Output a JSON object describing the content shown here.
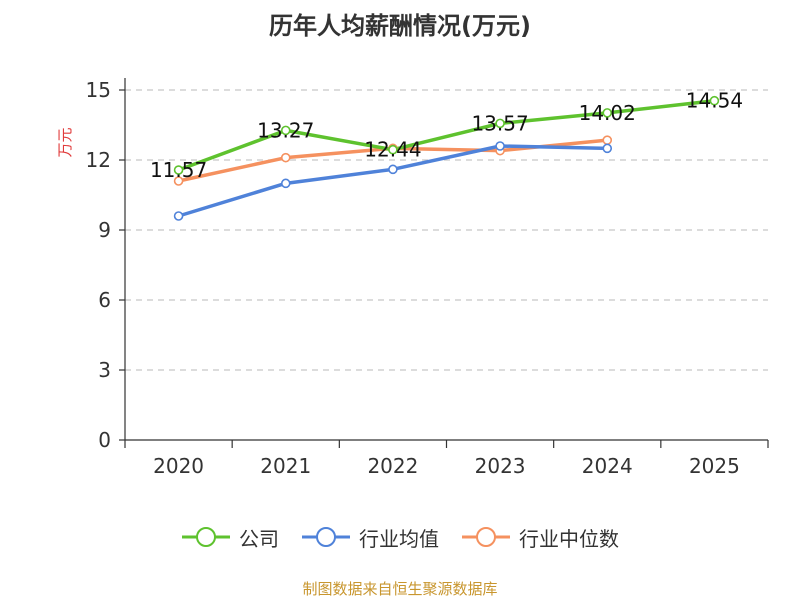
{
  "chart_data": {
    "type": "line",
    "title": "历年人均薪酬情况(万元)",
    "ylabel": "万元",
    "ylim": [
      0,
      15
    ],
    "yticks": [
      0,
      3,
      6,
      9,
      12,
      15
    ],
    "grid": true,
    "legend_position": "bottom",
    "categories": [
      "2020",
      "2021",
      "2022",
      "2023",
      "2024",
      "2025"
    ],
    "series": [
      {
        "name": "公司",
        "color": "#5ec22e",
        "values": [
          11.57,
          13.27,
          12.44,
          13.57,
          14.02,
          14.54
        ],
        "labels": [
          "11.57",
          "13.27",
          "12.44",
          "13.57",
          "14.02",
          "14.54"
        ]
      },
      {
        "name": "行业均值",
        "color": "#4f82d9",
        "values": [
          9.6,
          11.0,
          11.6,
          12.6,
          12.5,
          null
        ]
      },
      {
        "name": "行业中位数",
        "color": "#f5915f",
        "values": [
          11.1,
          12.1,
          12.5,
          12.4,
          12.85,
          null
        ]
      }
    ],
    "ylabel_color": "#e03a3a"
  },
  "source_note": "制图数据来自恒生聚源数据库",
  "source_color": "#c8962e"
}
